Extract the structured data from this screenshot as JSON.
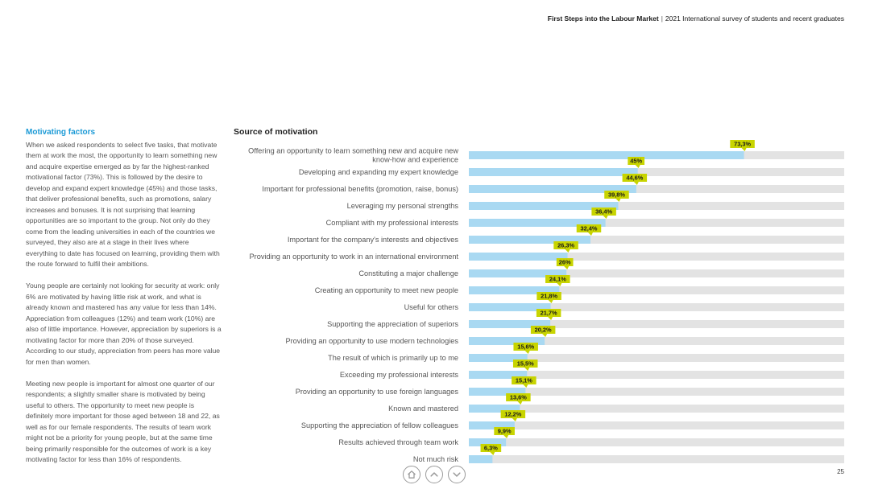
{
  "header": {
    "title": "First Steps into the Labour Market",
    "separator": "|",
    "subtitle": "2021 International survey of students and recent graduates"
  },
  "left_column": {
    "heading": "Motivating factors",
    "paragraphs": [
      "When we asked respondents to select five tasks, that motivate them at work the most, the opportunity to learn something new and acquire expertise emerged as by far the highest-ranked motivational factor (73%). This is followed by the desire to develop and expand expert knowledge (45%) and those tasks, that deliver professional benefits, such as promotions, salary increases and bonuses. It is not surprising that learning opportunities are so important to the group. Not only do they come from the leading universities in each of the countries we surveyed, they also are at a stage in their lives where everything to date has focused on learning, providing them with the route forward to fulfil their ambitions.",
      "Young people are certainly not looking for security at work: only 6% are motivated by having little risk at work, and what is already known and mastered has any value for less than 14%. Appreciation from colleagues (12%) and team work (10%) are also of little importance. However, appreciation by superiors is a motivating factor for more than 20% of those surveyed. According to our study, appreciation from peers has more value for men than women.",
      "Meeting new people is important for almost one quarter of our respondents; a slightly smaller share is motivated by being useful to others. The opportunity to meet new people is definitely more important for those aged between 18 and 22, as well as for our female respondents. The results of team work might not be a priority for young people, but at the same time being primarily responsible for the outcomes of work is a key motivating factor for less than 16% of respondents."
    ]
  },
  "chart_data": {
    "type": "bar",
    "orientation": "horizontal",
    "title": "Source of motivation",
    "categories": [
      "Offering an opportunity to learn something new and acquire new know-how and experience",
      "Developing and expanding my expert knowledge",
      "Important for professional benefits (promotion, raise, bonus)",
      "Leveraging my personal strengths",
      "Compliant with my professional interests",
      "Important for the company's interests and objectives",
      "Providing an opportunity to work in an international environment",
      "Constituting a major challenge",
      "Creating an opportunity to meet new people",
      "Useful for others",
      "Supporting the appreciation of superiors",
      "Providing an opportunity to use modern technologies",
      "The result of which is primarily up to me",
      "Exceeding my professional interests",
      "Providing an opportunity to use foreign languages",
      "Known and mastered",
      "Supporting the appreciation of fellow colleagues",
      "Results achieved through team work",
      "Not much risk"
    ],
    "category_lines": [
      [
        "Offering an opportunity to learn something new and acquire new",
        "know-how and experience"
      ],
      [
        "Developing and expanding my expert knowledge"
      ],
      [
        "Important for professional benefits (promotion, raise, bonus)"
      ],
      [
        "Leveraging my personal strengths"
      ],
      [
        "Compliant with my professional interests"
      ],
      [
        "Important for the company's interests and objectives"
      ],
      [
        "Providing an opportunity to work in an international environment"
      ],
      [
        "Constituting a major challenge"
      ],
      [
        "Creating an opportunity to meet new people"
      ],
      [
        "Useful for others"
      ],
      [
        "Supporting the appreciation of superiors"
      ],
      [
        "Providing an opportunity to use modern technologies"
      ],
      [
        "The result of which is primarily up to me"
      ],
      [
        "Exceeding my professional interests"
      ],
      [
        "Providing an opportunity to use foreign languages"
      ],
      [
        "Known and mastered"
      ],
      [
        "Supporting the appreciation of fellow colleagues"
      ],
      [
        "Results achieved through team work"
      ],
      [
        "Not much risk"
      ]
    ],
    "values": [
      73.3,
      45,
      44.6,
      39.8,
      36.4,
      32.4,
      26.3,
      26,
      24.1,
      21.8,
      21.7,
      20.2,
      15.6,
      15.5,
      15.1,
      13.6,
      12.2,
      9.9,
      6.3
    ],
    "value_labels": [
      "73,3%",
      "45%",
      "44,6%",
      "39,8%",
      "36,4%",
      "32,4%",
      "26,3%",
      "26%",
      "24,1%",
      "21,8%",
      "21,7%",
      "20,2%",
      "15,6%",
      "15,5%",
      "15,1%",
      "13,6%",
      "12,2%",
      "9,9%",
      "6,3%"
    ],
    "xlim": [
      0,
      100
    ],
    "colors": {
      "bar": "#a9d9f2",
      "track": "#e3e3e3",
      "label_bg": "#c8d400",
      "label_text": "#1a1a1a",
      "category_text": "#555555"
    }
  },
  "footer": {
    "page_number": "25",
    "nav": {
      "home": "home-icon",
      "up": "chevron-up-icon",
      "down": "chevron-down-icon"
    }
  }
}
